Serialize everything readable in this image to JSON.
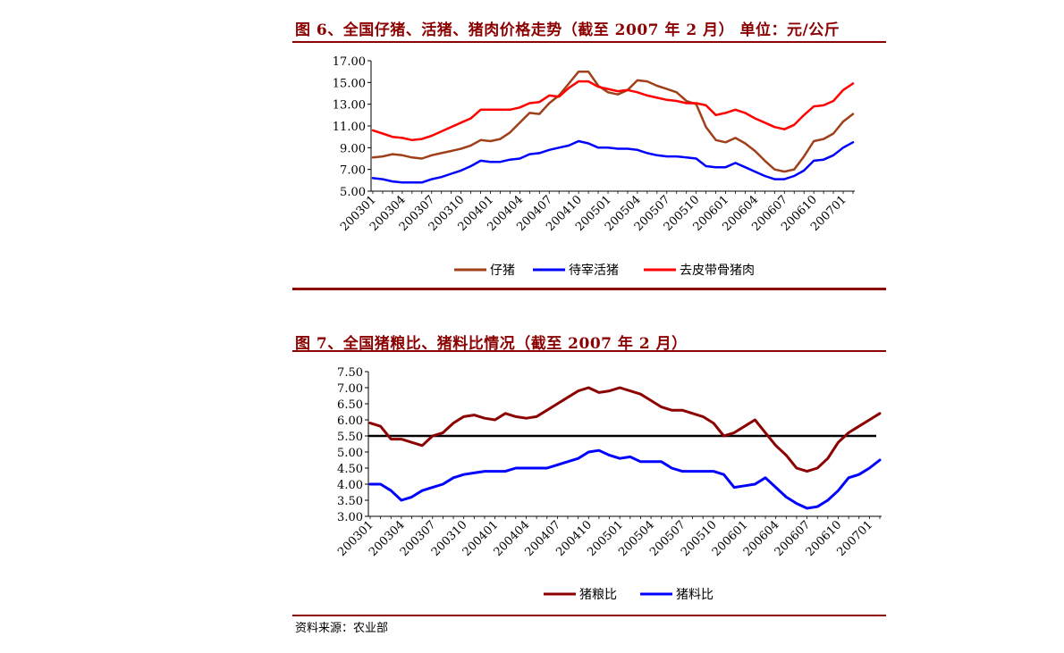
{
  "figure1": {
    "title": "图 6、全国仔猪、活猪、猪肉价格走势（截至 2007 年 2 月）  单位：元/公斤"
  },
  "figure2": {
    "title": "图 7、全国猪粮比、猪料比情况（截至 2007 年 2 月）"
  },
  "source": "资料来源：农业部",
  "colors": {
    "accent": "#8b0000",
    "brown": "#a0401a",
    "blue": "#0000ff",
    "red": "#ff0000",
    "darkred": "#8b0000",
    "black": "#000000"
  },
  "chart_data": [
    {
      "type": "line",
      "title": "",
      "ylim": [
        5,
        17
      ],
      "yticks": [
        "5.00",
        "7.00",
        "9.00",
        "11.00",
        "13.00",
        "15.00",
        "17.00"
      ],
      "ytick_values": [
        5,
        7,
        9,
        11,
        13,
        15,
        17
      ],
      "xtick_labels": [
        "200301",
        "200304",
        "200307",
        "200310",
        "200401",
        "200404",
        "200407",
        "200410",
        "200501",
        "200504",
        "200507",
        "200510",
        "200601",
        "200604",
        "200607",
        "200610",
        "200701"
      ],
      "xtick_index": [
        0,
        3,
        6,
        9,
        12,
        15,
        18,
        21,
        24,
        27,
        30,
        33,
        36,
        39,
        42,
        45,
        48
      ],
      "n_points": 50,
      "grid": false,
      "legend_position": "bottom",
      "series": [
        {
          "name": "仔猪",
          "color": "#a0401a",
          "values": [
            8.1,
            8.2,
            8.4,
            8.3,
            8.1,
            8.0,
            8.3,
            8.5,
            8.7,
            8.9,
            9.2,
            9.7,
            9.6,
            9.8,
            10.4,
            11.3,
            12.2,
            12.1,
            13.1,
            13.8,
            14.9,
            16.0,
            16.0,
            14.7,
            14.1,
            13.9,
            14.3,
            15.2,
            15.1,
            14.7,
            14.4,
            14.1,
            13.3,
            13.0,
            10.9,
            9.7,
            9.5,
            9.9,
            9.4,
            8.7,
            7.8,
            7.0,
            6.8,
            7.0,
            8.2,
            9.6,
            9.8,
            10.3,
            11.4,
            12.1
          ]
        },
        {
          "name": "待宰活猪",
          "color": "#0000ff",
          "values": [
            6.2,
            6.1,
            5.9,
            5.8,
            5.8,
            5.8,
            6.1,
            6.3,
            6.6,
            6.9,
            7.3,
            7.8,
            7.7,
            7.7,
            7.9,
            8.0,
            8.4,
            8.5,
            8.8,
            9.0,
            9.2,
            9.6,
            9.4,
            9.0,
            9.0,
            8.9,
            8.9,
            8.8,
            8.5,
            8.3,
            8.2,
            8.2,
            8.1,
            8.0,
            7.3,
            7.2,
            7.2,
            7.6,
            7.2,
            6.8,
            6.4,
            6.1,
            6.1,
            6.4,
            6.9,
            7.8,
            7.9,
            8.3,
            9.0,
            9.5
          ]
        },
        {
          "name": "去皮带骨猪肉",
          "color": "#ff0000",
          "values": [
            10.6,
            10.3,
            10.0,
            9.9,
            9.7,
            9.8,
            10.1,
            10.5,
            10.9,
            11.3,
            11.7,
            12.5,
            12.5,
            12.5,
            12.5,
            12.7,
            13.1,
            13.2,
            13.8,
            13.7,
            14.5,
            15.1,
            15.1,
            14.6,
            14.4,
            14.2,
            14.3,
            14.1,
            13.8,
            13.6,
            13.4,
            13.3,
            13.1,
            13.1,
            12.9,
            12.0,
            12.2,
            12.5,
            12.2,
            11.7,
            11.3,
            10.9,
            10.7,
            11.1,
            12.0,
            12.8,
            12.9,
            13.3,
            14.3,
            14.9
          ]
        }
      ]
    },
    {
      "type": "line",
      "title": "",
      "ylim": [
        3,
        7.5
      ],
      "yticks": [
        "3.00",
        "3.50",
        "4.00",
        "4.50",
        "5.00",
        "5.50",
        "6.00",
        "6.50",
        "7.00",
        "7.50"
      ],
      "ytick_values": [
        3,
        3.5,
        4,
        4.5,
        5,
        5.5,
        6,
        6.5,
        7,
        7.5
      ],
      "xtick_labels": [
        "200301",
        "200304",
        "200307",
        "200310",
        "200401",
        "200404",
        "200407",
        "200410",
        "200501",
        "200504",
        "200507",
        "200510",
        "200601",
        "200604",
        "200607",
        "200610",
        "200701"
      ],
      "xtick_index": [
        0,
        3,
        6,
        9,
        12,
        15,
        18,
        21,
        24,
        27,
        30,
        33,
        36,
        39,
        42,
        45,
        48
      ],
      "n_points": 50,
      "grid": false,
      "legend_position": "bottom",
      "reference_line": 5.5,
      "series": [
        {
          "name": "猪粮比",
          "color": "#8b0000",
          "values": [
            5.9,
            5.8,
            5.4,
            5.4,
            5.3,
            5.2,
            5.5,
            5.6,
            5.9,
            6.1,
            6.15,
            6.05,
            6.0,
            6.2,
            6.1,
            6.05,
            6.1,
            6.3,
            6.5,
            6.7,
            6.9,
            7.0,
            6.85,
            6.9,
            7.0,
            6.9,
            6.8,
            6.6,
            6.4,
            6.3,
            6.3,
            6.2,
            6.1,
            5.9,
            5.5,
            5.6,
            5.8,
            6.0,
            5.6,
            5.2,
            4.9,
            4.5,
            4.4,
            4.5,
            4.8,
            5.3,
            5.6,
            5.8,
            6.0,
            6.2
          ]
        },
        {
          "name": "猪料比",
          "color": "#0000ff",
          "values": [
            4.0,
            4.0,
            3.8,
            3.5,
            3.6,
            3.8,
            3.9,
            4.0,
            4.2,
            4.3,
            4.35,
            4.4,
            4.4,
            4.4,
            4.5,
            4.5,
            4.5,
            4.5,
            4.6,
            4.7,
            4.8,
            5.0,
            5.05,
            4.9,
            4.8,
            4.85,
            4.7,
            4.7,
            4.7,
            4.5,
            4.4,
            4.4,
            4.4,
            4.4,
            4.3,
            3.9,
            3.95,
            4.0,
            4.2,
            3.9,
            3.6,
            3.4,
            3.25,
            3.3,
            3.5,
            3.8,
            4.2,
            4.3,
            4.5,
            4.75
          ]
        }
      ]
    }
  ]
}
